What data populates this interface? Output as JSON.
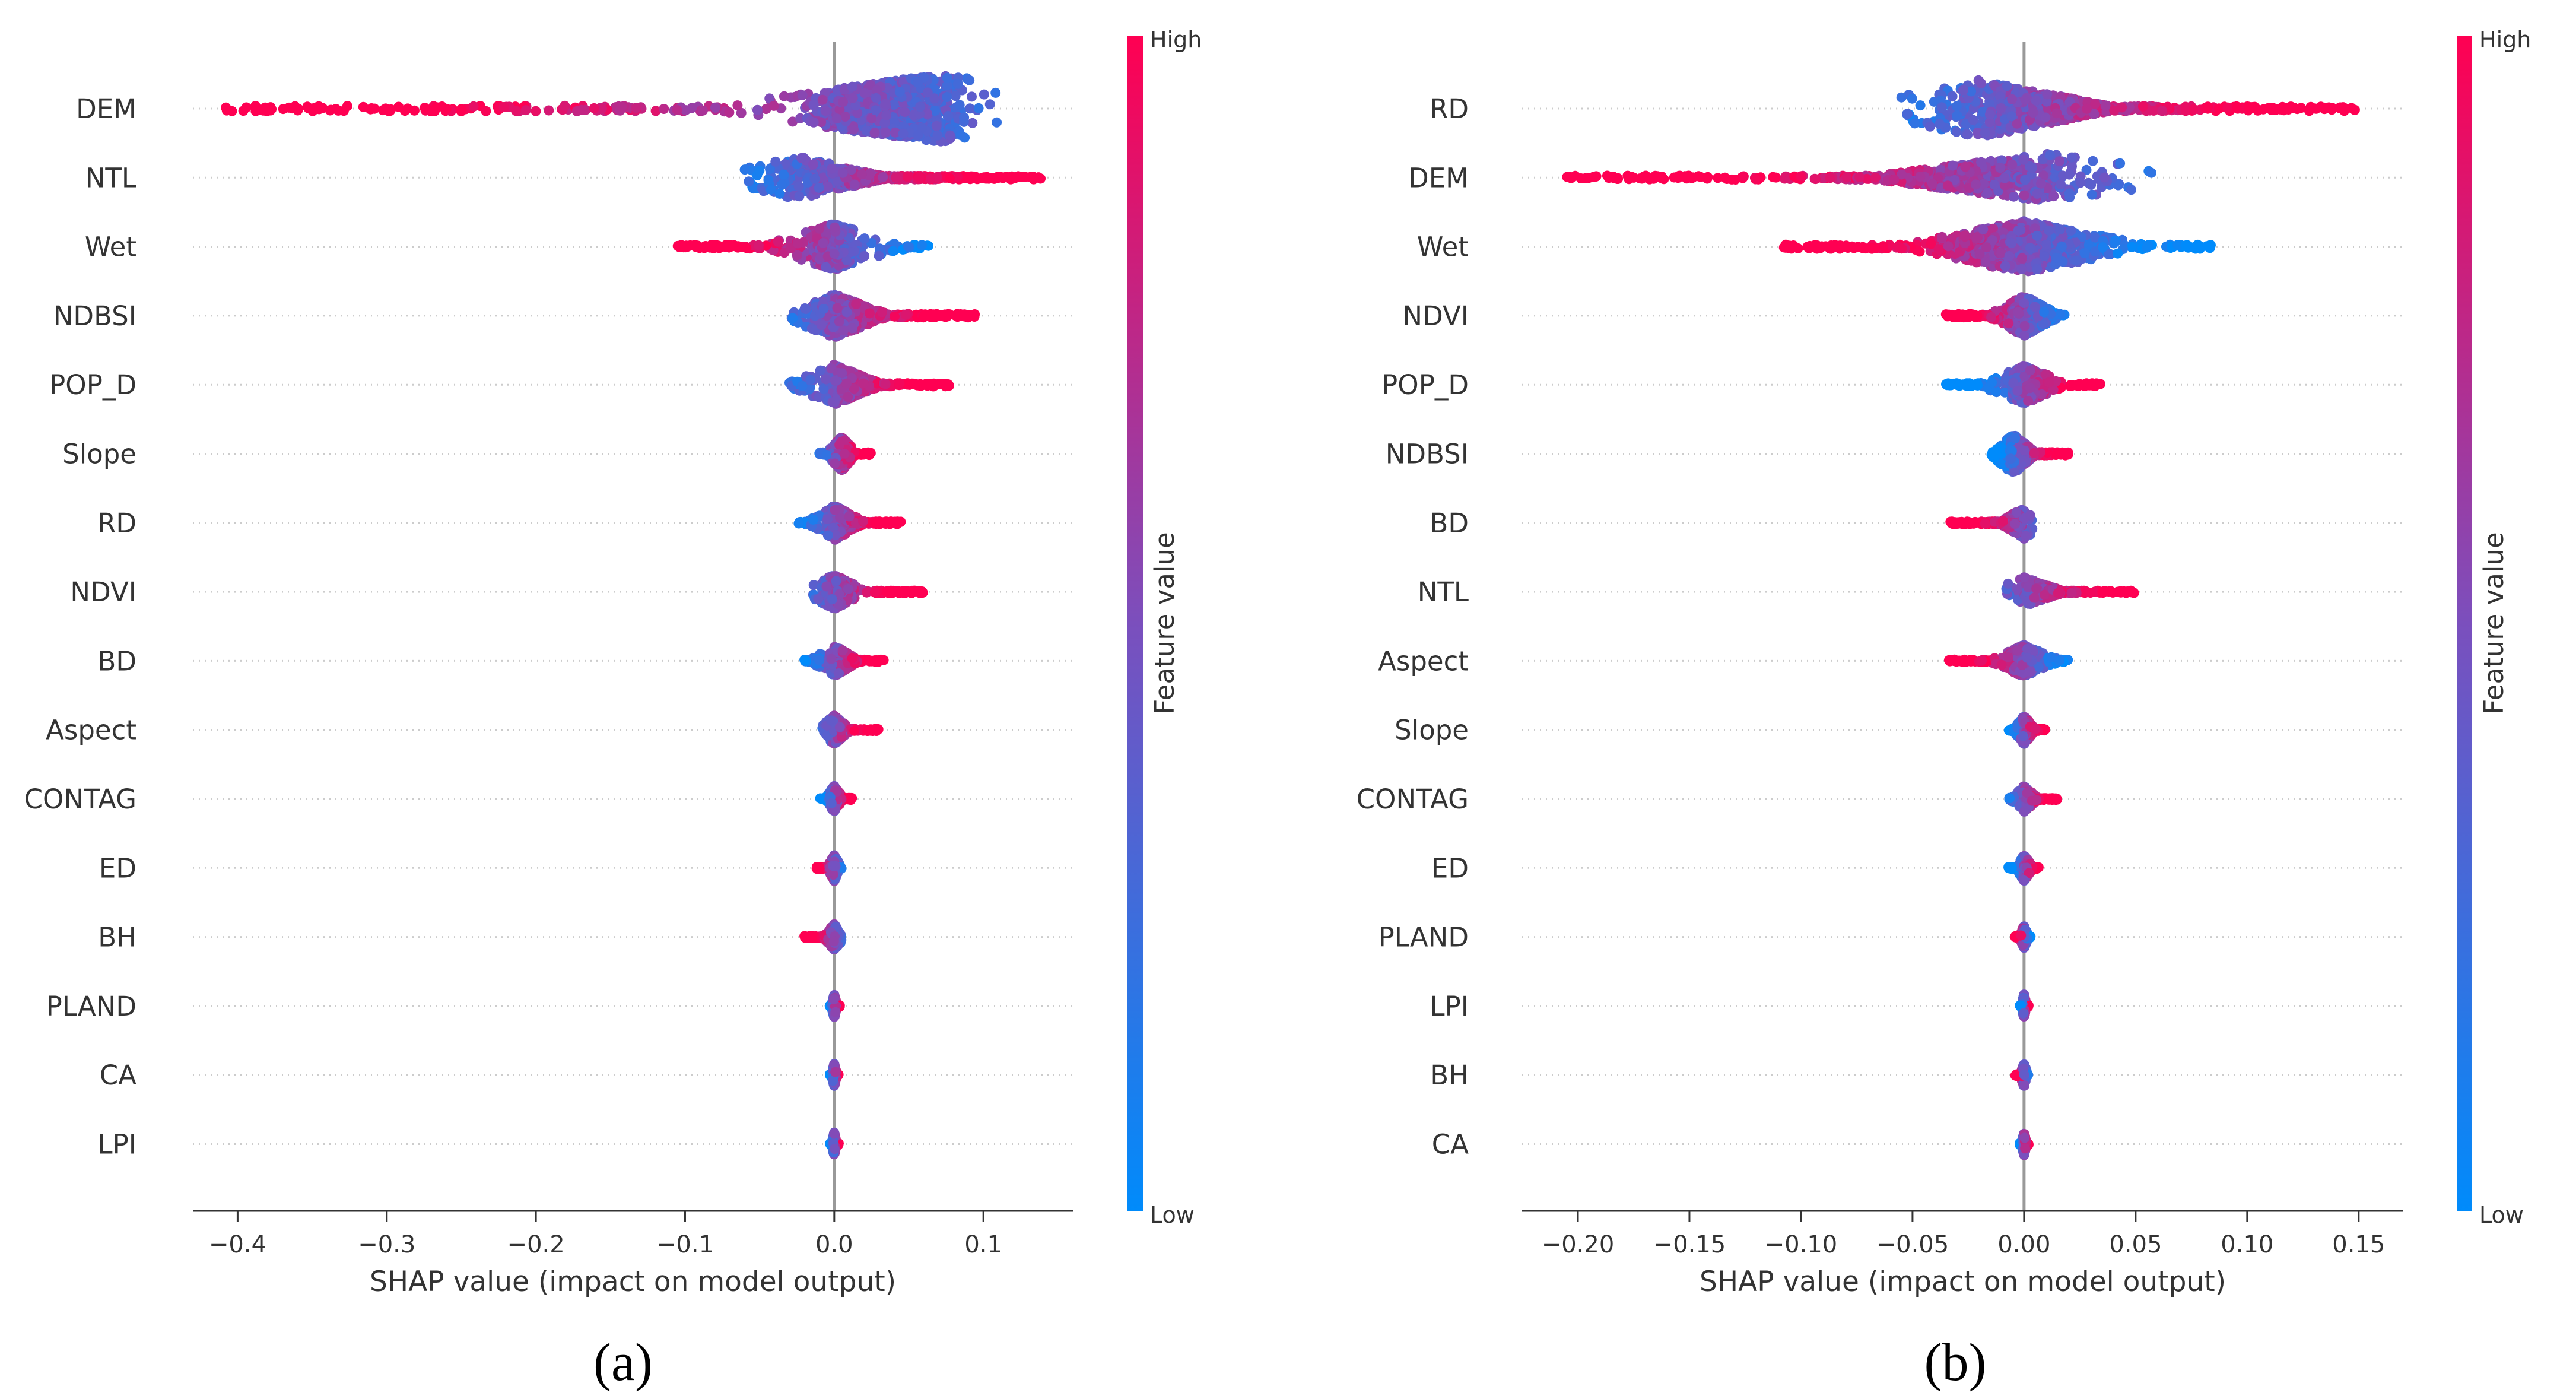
{
  "colors": {
    "low": "#008bfb",
    "high": "#ff0052",
    "zero_line": "#999999",
    "grid": "#cccccc",
    "axis": "#333333"
  },
  "chart_data": [
    {
      "type": "scatter",
      "subtype": "shap-beeswarm",
      "panel_label": "(a)",
      "xlabel": "SHAP value (impact on model output)",
      "xlim": [
        -0.43,
        0.16
      ],
      "xticks": [
        -0.4,
        -0.3,
        -0.2,
        -0.1,
        0.0,
        0.1
      ],
      "xtick_labels": [
        "−0.4",
        "−0.3",
        "−0.2",
        "−0.1",
        "0.0",
        "0.1"
      ],
      "colorbar": {
        "title": "Feature value",
        "high_label": "High",
        "low_label": "Low"
      },
      "features": [
        {
          "name": "DEM",
          "min": -0.41,
          "max": 0.11,
          "core": [
            -0.03,
            0.1
          ],
          "peak": 0.07,
          "width": 1.0
        },
        {
          "name": "NTL",
          "min": -0.06,
          "max": 0.14,
          "core": [
            -0.06,
            0.1
          ],
          "peak": -0.025,
          "width": 0.55
        },
        {
          "name": "Wet",
          "min": -0.105,
          "max": 0.065,
          "core": [
            -0.02,
            0.02
          ],
          "peak": 0.0,
          "width": 0.6
        },
        {
          "name": "NDBSI",
          "min": -0.03,
          "max": 0.095,
          "core": [
            -0.02,
            0.04
          ],
          "peak": 0.0,
          "width": 0.55
        },
        {
          "name": "POP_D",
          "min": -0.03,
          "max": 0.078,
          "core": [
            -0.01,
            0.03
          ],
          "peak": 0.0,
          "width": 0.5
        },
        {
          "name": "Slope",
          "min": -0.01,
          "max": 0.025,
          "core": [
            -0.005,
            0.015
          ],
          "peak": 0.005,
          "width": 0.4
        },
        {
          "name": "RD",
          "min": -0.025,
          "max": 0.045,
          "core": [
            -0.01,
            0.02
          ],
          "peak": 0.0,
          "width": 0.4
        },
        {
          "name": "NDVI",
          "min": -0.015,
          "max": 0.06,
          "core": [
            -0.01,
            0.015
          ],
          "peak": 0.0,
          "width": 0.4
        },
        {
          "name": "BD",
          "min": -0.02,
          "max": 0.035,
          "core": [
            -0.005,
            0.02
          ],
          "peak": 0.0,
          "width": 0.35
        },
        {
          "name": "Aspect",
          "min": -0.008,
          "max": 0.03,
          "core": [
            -0.005,
            0.01
          ],
          "peak": 0.0,
          "width": 0.3
        },
        {
          "name": "CONTAG",
          "min": -0.01,
          "max": 0.012,
          "core": [
            -0.005,
            0.005
          ],
          "peak": 0.0,
          "width": 0.25
        },
        {
          "name": "ED",
          "min": -0.012,
          "max": 0.005,
          "core": [
            -0.004,
            0.003
          ],
          "peak": 0.0,
          "width": 0.25
        },
        {
          "name": "BH",
          "min": -0.02,
          "max": 0.005,
          "core": [
            -0.004,
            0.003
          ],
          "peak": 0.0,
          "width": 0.25
        },
        {
          "name": "PLAND",
          "min": -0.003,
          "max": 0.004,
          "core": [
            -0.002,
            0.002
          ],
          "peak": 0.0,
          "width": 0.2
        },
        {
          "name": "CA",
          "min": -0.003,
          "max": 0.003,
          "core": [
            -0.002,
            0.002
          ],
          "peak": 0.0,
          "width": 0.2
        },
        {
          "name": "LPI",
          "min": -0.003,
          "max": 0.003,
          "core": [
            -0.002,
            0.002
          ],
          "peak": 0.0,
          "width": 0.2
        }
      ]
    },
    {
      "type": "scatter",
      "subtype": "shap-beeswarm",
      "panel_label": "(b)",
      "xlabel": "SHAP value (impact on model output)",
      "xlim": [
        -0.225,
        0.17
      ],
      "xticks": [
        -0.2,
        -0.15,
        -0.1,
        -0.05,
        0.0,
        0.05,
        0.1,
        0.15
      ],
      "xtick_labels": [
        "−0.20",
        "−0.15",
        "−0.10",
        "−0.05",
        "0.00",
        "0.05",
        "0.10",
        "0.15"
      ],
      "colorbar": {
        "title": "Feature value",
        "high_label": "High",
        "low_label": "Low"
      },
      "features": [
        {
          "name": "RD",
          "min": -0.055,
          "max": 0.15,
          "core": [
            -0.05,
            0.07
          ],
          "peak": -0.02,
          "width": 0.8
        },
        {
          "name": "DEM",
          "min": -0.205,
          "max": 0.06,
          "core": [
            -0.1,
            0.05
          ],
          "peak": 0.01,
          "width": 0.65
        },
        {
          "name": "Wet",
          "min": -0.11,
          "max": 0.085,
          "core": [
            -0.05,
            0.05
          ],
          "peak": 0.0,
          "width": 0.7
        },
        {
          "name": "NDVI",
          "min": -0.035,
          "max": 0.02,
          "core": [
            -0.01,
            0.015
          ],
          "peak": 0.0,
          "width": 0.5
        },
        {
          "name": "POP_D",
          "min": -0.035,
          "max": 0.035,
          "core": [
            -0.01,
            0.015
          ],
          "peak": 0.0,
          "width": 0.45
        },
        {
          "name": "NDBSI",
          "min": -0.015,
          "max": 0.02,
          "core": [
            -0.01,
            0.01
          ],
          "peak": -0.005,
          "width": 0.5
        },
        {
          "name": "BD",
          "min": -0.033,
          "max": 0.004,
          "core": [
            -0.02,
            0.003
          ],
          "peak": 0.0,
          "width": 0.35
        },
        {
          "name": "NTL",
          "min": -0.008,
          "max": 0.052,
          "core": [
            -0.003,
            0.03
          ],
          "peak": 0.0,
          "width": 0.3
        },
        {
          "name": "Aspect",
          "min": -0.035,
          "max": 0.02,
          "core": [
            -0.01,
            0.01
          ],
          "peak": 0.0,
          "width": 0.35
        },
        {
          "name": "Slope",
          "min": -0.007,
          "max": 0.01,
          "core": [
            -0.004,
            0.006
          ],
          "peak": 0.0,
          "width": 0.3
        },
        {
          "name": "CONTAG",
          "min": -0.007,
          "max": 0.015,
          "core": [
            -0.003,
            0.008
          ],
          "peak": 0.0,
          "width": 0.25
        },
        {
          "name": "ED",
          "min": -0.007,
          "max": 0.007,
          "core": [
            -0.003,
            0.004
          ],
          "peak": 0.0,
          "width": 0.25
        },
        {
          "name": "PLAND",
          "min": -0.004,
          "max": 0.003,
          "core": [
            -0.002,
            0.002
          ],
          "peak": 0.0,
          "width": 0.2
        },
        {
          "name": "LPI",
          "min": -0.002,
          "max": 0.002,
          "core": [
            -0.001,
            0.001
          ],
          "peak": 0.0,
          "width": 0.2
        },
        {
          "name": "BH",
          "min": -0.004,
          "max": 0.002,
          "core": [
            -0.002,
            0.001
          ],
          "peak": 0.0,
          "width": 0.2
        },
        {
          "name": "CA",
          "min": -0.002,
          "max": 0.002,
          "core": [
            -0.001,
            0.001
          ],
          "peak": 0.0,
          "width": 0.2
        }
      ]
    }
  ]
}
